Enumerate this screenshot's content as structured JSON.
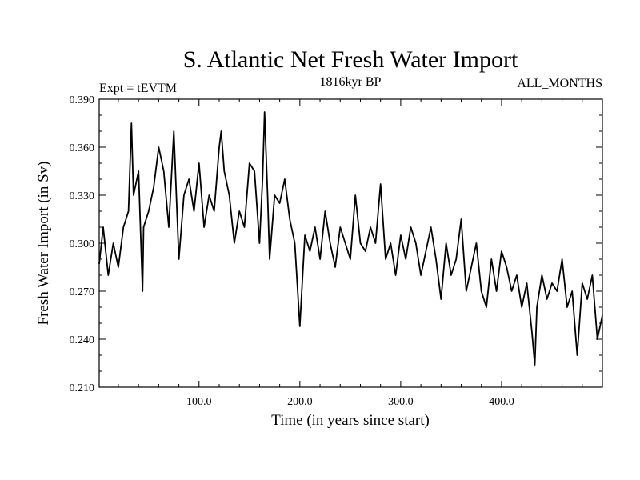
{
  "chart_data": {
    "type": "line",
    "title": "S. Atlantic Net Fresh Water Import",
    "subtitle_left": "Expt = tEVTM",
    "subtitle_center": "1816kyr BP",
    "subtitle_right": "ALL_MONTHS",
    "xlabel": "Time (in years since start)",
    "ylabel": "Fresh Water Import (in Sv)",
    "xlim": [
      1,
      500
    ],
    "ylim": [
      0.21,
      0.39
    ],
    "xticks": [
      100,
      200,
      300,
      400
    ],
    "xtick_labels": [
      "100.0",
      "200.0",
      "300.0",
      "400.0"
    ],
    "yticks": [
      0.21,
      0.24,
      0.27,
      0.3,
      0.33,
      0.36,
      0.39
    ],
    "ytick_labels": [
      "0.210",
      "0.240",
      "0.270",
      "0.300",
      "0.330",
      "0.360",
      "0.390"
    ],
    "series": [
      {
        "name": "Fresh Water Import",
        "x": [
          1,
          5,
          10,
          15,
          20,
          25,
          30,
          33,
          35,
          40,
          44,
          45,
          50,
          55,
          60,
          65,
          70,
          75,
          80,
          85,
          90,
          95,
          100,
          105,
          110,
          115,
          120,
          122,
          125,
          130,
          135,
          140,
          145,
          150,
          155,
          160,
          163,
          165,
          168,
          170,
          175,
          180,
          185,
          190,
          195,
          200,
          205,
          210,
          215,
          220,
          225,
          230,
          235,
          240,
          245,
          250,
          255,
          260,
          265,
          270,
          275,
          280,
          285,
          290,
          295,
          300,
          305,
          310,
          315,
          320,
          325,
          330,
          335,
          340,
          345,
          350,
          355,
          360,
          365,
          370,
          375,
          380,
          385,
          390,
          395,
          400,
          405,
          410,
          415,
          420,
          425,
          430,
          433,
          435,
          440,
          445,
          450,
          455,
          460,
          465,
          470,
          475,
          480,
          485,
          490,
          495,
          500
        ],
        "values": [
          0.287,
          0.31,
          0.28,
          0.3,
          0.285,
          0.31,
          0.32,
          0.375,
          0.33,
          0.345,
          0.27,
          0.31,
          0.32,
          0.335,
          0.36,
          0.345,
          0.31,
          0.37,
          0.29,
          0.33,
          0.34,
          0.32,
          0.35,
          0.31,
          0.33,
          0.32,
          0.36,
          0.37,
          0.345,
          0.33,
          0.3,
          0.32,
          0.31,
          0.35,
          0.345,
          0.3,
          0.34,
          0.382,
          0.33,
          0.29,
          0.33,
          0.325,
          0.34,
          0.315,
          0.3,
          0.248,
          0.305,
          0.295,
          0.31,
          0.29,
          0.32,
          0.3,
          0.285,
          0.31,
          0.3,
          0.29,
          0.33,
          0.3,
          0.295,
          0.31,
          0.3,
          0.337,
          0.29,
          0.3,
          0.28,
          0.305,
          0.29,
          0.31,
          0.3,
          0.28,
          0.295,
          0.31,
          0.29,
          0.265,
          0.3,
          0.28,
          0.29,
          0.315,
          0.27,
          0.285,
          0.3,
          0.27,
          0.26,
          0.29,
          0.27,
          0.295,
          0.285,
          0.27,
          0.28,
          0.26,
          0.275,
          0.245,
          0.224,
          0.26,
          0.28,
          0.265,
          0.275,
          0.27,
          0.29,
          0.26,
          0.27,
          0.23,
          0.275,
          0.265,
          0.28,
          0.24,
          0.255
        ]
      }
    ]
  }
}
